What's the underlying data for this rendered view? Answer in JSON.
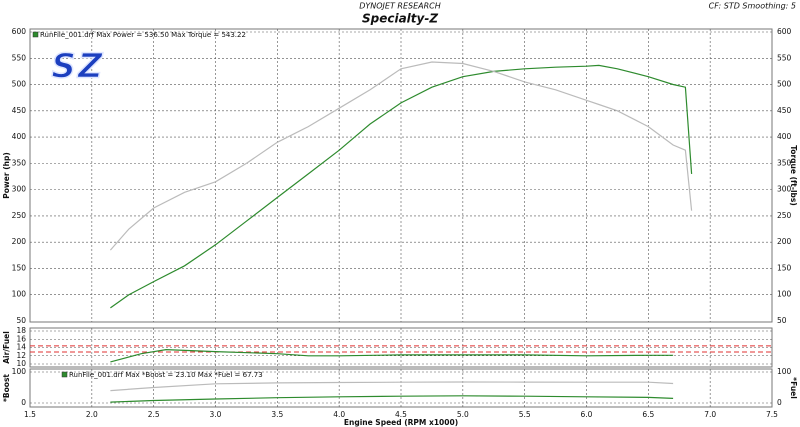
{
  "chart_data": [
    {
      "type": "line",
      "title": "DYNOJET RESEARCH",
      "subtitle": "Specialty-Z",
      "annotation": "CF: STD  Smoothing: 5",
      "logo": "SZ",
      "legend_text": "RunFile_001.drf Max Power = 536.50    Max Torque = 543.22",
      "ylabel": "Power (hp)",
      "y2label": "Torque (ft-lbs)",
      "grid": true,
      "xlim": [
        1.5,
        7.5
      ],
      "ylim": [
        50,
        600
      ],
      "yticks": [
        50,
        100,
        150,
        200,
        250,
        300,
        350,
        400,
        450,
        500,
        550,
        600
      ],
      "y2lim": [
        50,
        600
      ],
      "y2ticks": [
        50,
        100,
        150,
        200,
        250,
        300,
        350,
        400,
        450,
        500,
        550,
        600
      ],
      "x": [
        2.15,
        2.3,
        2.5,
        2.75,
        3.0,
        3.25,
        3.5,
        3.75,
        4.0,
        4.25,
        4.5,
        4.75,
        5.0,
        5.25,
        5.5,
        5.75,
        6.0,
        6.1,
        6.25,
        6.5,
        6.7,
        6.8,
        6.85
      ],
      "series": [
        {
          "name": "Power",
          "color": "#2e8b2e",
          "axis": "y",
          "values": [
            75,
            100,
            125,
            155,
            195,
            240,
            285,
            330,
            375,
            425,
            465,
            495,
            515,
            525,
            530,
            533,
            535,
            536.5,
            530,
            515,
            500,
            495,
            330
          ]
        },
        {
          "name": "Torque",
          "color": "#bbbbbb",
          "axis": "y2",
          "values": [
            185,
            225,
            265,
            295,
            315,
            350,
            390,
            420,
            455,
            490,
            530,
            543,
            540,
            525,
            505,
            490,
            470,
            462,
            450,
            420,
            385,
            375,
            260
          ]
        }
      ]
    },
    {
      "type": "line",
      "ylabel": "Air/Fuel",
      "grid": true,
      "xlim": [
        1.5,
        7.5
      ],
      "ylim": [
        10,
        18
      ],
      "yticks": [
        10,
        12,
        14,
        16,
        18
      ],
      "reference_lines": [
        14.4,
        12.9
      ],
      "reference_color": "#e03030",
      "x": [
        2.15,
        2.4,
        2.6,
        2.75,
        3.0,
        3.5,
        3.75,
        4.0,
        4.5,
        5.0,
        5.5,
        6.0,
        6.5,
        6.7
      ],
      "series": [
        {
          "name": "Air/Fuel",
          "color": "#2e8b2e",
          "axis": "y",
          "values": [
            10.5,
            12.5,
            13.5,
            13.3,
            13,
            12.5,
            12,
            12,
            12.2,
            12.2,
            12.2,
            12,
            12.1,
            12.1
          ]
        }
      ]
    },
    {
      "type": "line",
      "legend_text": "RunFile_001.drf Max *Boost = 23.10    Max *Fuel = 67.73",
      "ylabel": "*Boost",
      "y2label": "*Fuel",
      "xlabel": "Engine Speed (RPM x1000)",
      "grid": true,
      "xlim": [
        1.5,
        7.5
      ],
      "xticks": [
        1.5,
        {
          "value": 2,
          "label": "2.0"
        },
        2.5,
        {
          "value": 3,
          "label": "3.0"
        },
        3.5,
        {
          "value": 4,
          "label": "4.0"
        },
        4.5,
        {
          "value": 5,
          "label": "5.0"
        },
        5.5,
        {
          "value": 6,
          "label": "6.0"
        },
        6.5,
        {
          "value": 7,
          "label": "7.0"
        },
        7.5
      ],
      "ylim": [
        0,
        100
      ],
      "yticks": [
        0,
        100
      ],
      "y2lim": [
        0,
        100
      ],
      "y2ticks": [
        0,
        100
      ],
      "x": [
        2.15,
        2.5,
        3.0,
        3.5,
        4.0,
        4.5,
        5.0,
        5.5,
        6.0,
        6.5,
        6.7
      ],
      "series": [
        {
          "name": "*Boost",
          "color": "#2e8b2e",
          "axis": "y",
          "values": [
            3,
            8,
            13,
            17,
            20,
            22,
            23.1,
            22,
            20,
            18,
            15
          ]
        },
        {
          "name": "*Fuel",
          "color": "#bbbbbb",
          "axis": "y2",
          "values": [
            40,
            50,
            62,
            65,
            66,
            67,
            67.7,
            67.5,
            67,
            67,
            63
          ]
        }
      ]
    }
  ]
}
